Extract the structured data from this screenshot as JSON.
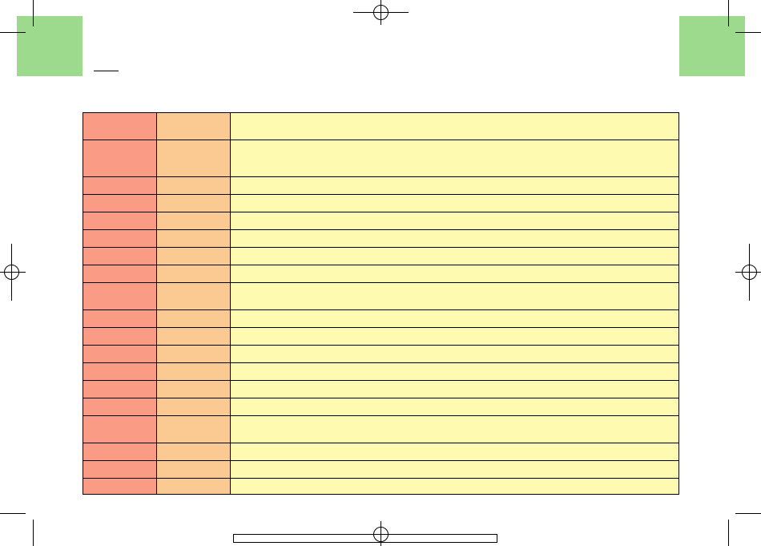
{
  "rows": [
    {
      "col1": "",
      "col2": "",
      "col3": "",
      "size": "tall"
    },
    {
      "col1": "",
      "col2": "",
      "col3": "",
      "size": "xtall"
    },
    {
      "col1": "",
      "col2": "",
      "col3": "",
      "size": "short"
    },
    {
      "col1": "",
      "col2": "",
      "col3": "",
      "size": "short"
    },
    {
      "col1": "",
      "col2": "",
      "col3": "",
      "size": "short"
    },
    {
      "col1": "",
      "col2": "",
      "col3": "",
      "size": "short"
    },
    {
      "col1": "",
      "col2": "",
      "col3": "",
      "size": "short"
    },
    {
      "col1": "",
      "col2": "",
      "col3": "",
      "size": "short"
    },
    {
      "col1": "",
      "col2": "",
      "col3": "",
      "size": "tall"
    },
    {
      "col1": "",
      "col2": "",
      "col3": "",
      "size": "short"
    },
    {
      "col1": "",
      "col2": "",
      "col3": "",
      "size": "short"
    },
    {
      "col1": "",
      "col2": "",
      "col3": "",
      "size": "short"
    },
    {
      "col1": "",
      "col2": "",
      "col3": "",
      "size": "short"
    },
    {
      "col1": "",
      "col2": "",
      "col3": "",
      "size": "short"
    },
    {
      "col1": "",
      "col2": "",
      "col3": "",
      "size": "short"
    },
    {
      "col1": "",
      "col2": "",
      "col3": "",
      "size": "tall"
    },
    {
      "col1": "",
      "col2": "",
      "col3": "",
      "size": "short"
    },
    {
      "col1": "",
      "col2": "",
      "col3": "",
      "size": "short"
    },
    {
      "col1": "",
      "col2": "",
      "col3": "",
      "size": "short"
    }
  ],
  "colors": {
    "tab": "#9dda8e",
    "column1": "#f99b85",
    "column2": "#fbc992",
    "column3": "#fefbb0"
  }
}
